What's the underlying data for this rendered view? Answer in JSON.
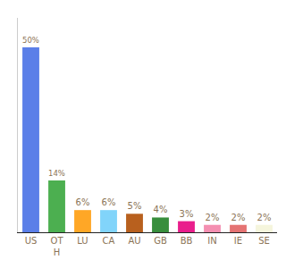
{
  "chart_data": {
    "type": "bar",
    "categories": [
      "US",
      "OT\nH",
      "LU",
      "CA",
      "AU",
      "GB",
      "BB",
      "IN",
      "IE",
      "SE"
    ],
    "values": [
      50,
      14,
      6,
      6,
      5,
      4,
      3,
      2,
      2,
      2
    ],
    "value_labels": [
      "50%",
      "14%",
      "6%",
      "6%",
      "5%",
      "4%",
      "3%",
      "2%",
      "2%",
      "2%"
    ],
    "colors": [
      "#5b7fe8",
      "#4caf50",
      "#ffa726",
      "#81d4fa",
      "#b8601e",
      "#388e3c",
      "#e91e8c",
      "#f48fb1",
      "#e57373",
      "#f5f5dc"
    ],
    "ylim": [
      0,
      58
    ],
    "data_labels": true,
    "tick_labels": "x",
    "grid": false
  }
}
